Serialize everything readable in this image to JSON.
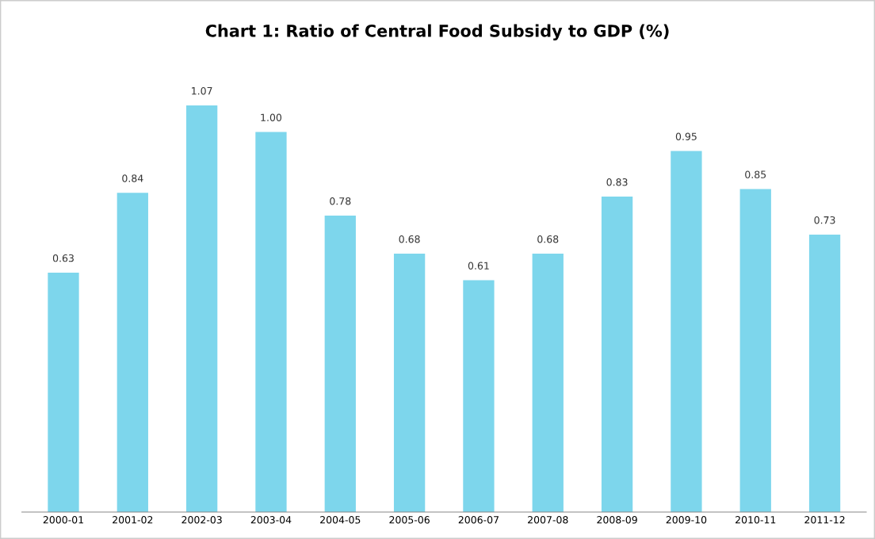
{
  "chart_data": {
    "type": "bar",
    "title": "Chart 1: Ratio of Central Food Subsidy to GDP (%)",
    "categories": [
      "2000-01",
      "2001-02",
      "2002-03",
      "2003-04",
      "2004-05",
      "2005-06",
      "2006-07",
      "2007-08",
      "2008-09",
      "2009-10",
      "2010-11",
      "2011-12"
    ],
    "values": [
      0.63,
      0.84,
      1.07,
      1.0,
      0.78,
      0.68,
      0.61,
      0.68,
      0.83,
      0.95,
      0.85,
      0.73
    ],
    "value_labels": [
      "0.63",
      "0.84",
      "1.07",
      "1.00",
      "0.78",
      "0.68",
      "0.61",
      "0.68",
      "0.83",
      "0.95",
      "0.85",
      "0.73"
    ],
    "color": "#7dd6ec",
    "tick_labels": "x",
    "grid": false,
    "legend": false
  }
}
